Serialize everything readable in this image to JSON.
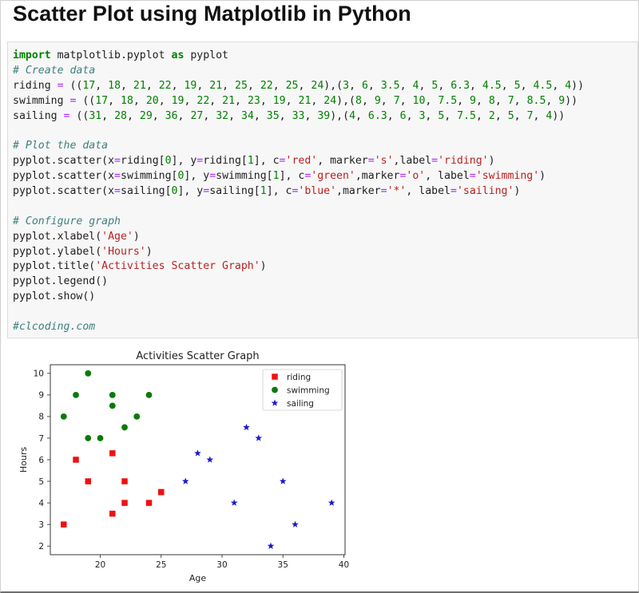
{
  "page": {
    "title": "Scatter Plot using Matplotlib in Python"
  },
  "code": {
    "lines": [
      [
        {
          "t": "import",
          "c": "kw"
        },
        {
          "t": " matplotlib.pyplot "
        },
        {
          "t": "as",
          "c": "kw"
        },
        {
          "t": " pyplot"
        }
      ],
      [
        {
          "t": "# Create data",
          "c": "cm"
        }
      ],
      [
        {
          "t": "riding "
        },
        {
          "t": "=",
          "c": "op"
        },
        {
          "t": " (("
        },
        {
          "t": "17",
          "c": "num"
        },
        {
          "t": ", "
        },
        {
          "t": "18",
          "c": "num"
        },
        {
          "t": ", "
        },
        {
          "t": "21",
          "c": "num"
        },
        {
          "t": ", "
        },
        {
          "t": "22",
          "c": "num"
        },
        {
          "t": ", "
        },
        {
          "t": "19",
          "c": "num"
        },
        {
          "t": ", "
        },
        {
          "t": "21",
          "c": "num"
        },
        {
          "t": ", "
        },
        {
          "t": "25",
          "c": "num"
        },
        {
          "t": ", "
        },
        {
          "t": "22",
          "c": "num"
        },
        {
          "t": ", "
        },
        {
          "t": "25",
          "c": "num"
        },
        {
          "t": ", "
        },
        {
          "t": "24",
          "c": "num"
        },
        {
          "t": "),("
        },
        {
          "t": "3",
          "c": "num"
        },
        {
          "t": ", "
        },
        {
          "t": "6",
          "c": "num"
        },
        {
          "t": ", "
        },
        {
          "t": "3.5",
          "c": "num"
        },
        {
          "t": ", "
        },
        {
          "t": "4",
          "c": "num"
        },
        {
          "t": ", "
        },
        {
          "t": "5",
          "c": "num"
        },
        {
          "t": ", "
        },
        {
          "t": "6.3",
          "c": "num"
        },
        {
          "t": ", "
        },
        {
          "t": "4.5",
          "c": "num"
        },
        {
          "t": ", "
        },
        {
          "t": "5",
          "c": "num"
        },
        {
          "t": ", "
        },
        {
          "t": "4.5",
          "c": "num"
        },
        {
          "t": ", "
        },
        {
          "t": "4",
          "c": "num"
        },
        {
          "t": "))"
        }
      ],
      [
        {
          "t": "swimming "
        },
        {
          "t": "=",
          "c": "op"
        },
        {
          "t": " (("
        },
        {
          "t": "17",
          "c": "num"
        },
        {
          "t": ", "
        },
        {
          "t": "18",
          "c": "num"
        },
        {
          "t": ", "
        },
        {
          "t": "20",
          "c": "num"
        },
        {
          "t": ", "
        },
        {
          "t": "19",
          "c": "num"
        },
        {
          "t": ", "
        },
        {
          "t": "22",
          "c": "num"
        },
        {
          "t": ", "
        },
        {
          "t": "21",
          "c": "num"
        },
        {
          "t": ", "
        },
        {
          "t": "23",
          "c": "num"
        },
        {
          "t": ", "
        },
        {
          "t": "19",
          "c": "num"
        },
        {
          "t": ", "
        },
        {
          "t": "21",
          "c": "num"
        },
        {
          "t": ", "
        },
        {
          "t": "24",
          "c": "num"
        },
        {
          "t": "),("
        },
        {
          "t": "8",
          "c": "num"
        },
        {
          "t": ", "
        },
        {
          "t": "9",
          "c": "num"
        },
        {
          "t": ", "
        },
        {
          "t": "7",
          "c": "num"
        },
        {
          "t": ", "
        },
        {
          "t": "10",
          "c": "num"
        },
        {
          "t": ", "
        },
        {
          "t": "7.5",
          "c": "num"
        },
        {
          "t": ", "
        },
        {
          "t": "9",
          "c": "num"
        },
        {
          "t": ", "
        },
        {
          "t": "8",
          "c": "num"
        },
        {
          "t": ", "
        },
        {
          "t": "7",
          "c": "num"
        },
        {
          "t": ", "
        },
        {
          "t": "8.5",
          "c": "num"
        },
        {
          "t": ", "
        },
        {
          "t": "9",
          "c": "num"
        },
        {
          "t": "))"
        }
      ],
      [
        {
          "t": "sailing "
        },
        {
          "t": "=",
          "c": "op"
        },
        {
          "t": " (("
        },
        {
          "t": "31",
          "c": "num"
        },
        {
          "t": ", "
        },
        {
          "t": "28",
          "c": "num"
        },
        {
          "t": ", "
        },
        {
          "t": "29",
          "c": "num"
        },
        {
          "t": ", "
        },
        {
          "t": "36",
          "c": "num"
        },
        {
          "t": ", "
        },
        {
          "t": "27",
          "c": "num"
        },
        {
          "t": ", "
        },
        {
          "t": "32",
          "c": "num"
        },
        {
          "t": ", "
        },
        {
          "t": "34",
          "c": "num"
        },
        {
          "t": ", "
        },
        {
          "t": "35",
          "c": "num"
        },
        {
          "t": ", "
        },
        {
          "t": "33",
          "c": "num"
        },
        {
          "t": ", "
        },
        {
          "t": "39",
          "c": "num"
        },
        {
          "t": "),("
        },
        {
          "t": "4",
          "c": "num"
        },
        {
          "t": ", "
        },
        {
          "t": "6.3",
          "c": "num"
        },
        {
          "t": ", "
        },
        {
          "t": "6",
          "c": "num"
        },
        {
          "t": ", "
        },
        {
          "t": "3",
          "c": "num"
        },
        {
          "t": ", "
        },
        {
          "t": "5",
          "c": "num"
        },
        {
          "t": ", "
        },
        {
          "t": "7.5",
          "c": "num"
        },
        {
          "t": ", "
        },
        {
          "t": "2",
          "c": "num"
        },
        {
          "t": ", "
        },
        {
          "t": "5",
          "c": "num"
        },
        {
          "t": ", "
        },
        {
          "t": "7",
          "c": "num"
        },
        {
          "t": ", "
        },
        {
          "t": "4",
          "c": "num"
        },
        {
          "t": "))"
        }
      ],
      [],
      [
        {
          "t": "# Plot the data",
          "c": "cm"
        }
      ],
      [
        {
          "t": "pyplot.scatter(x"
        },
        {
          "t": "=",
          "c": "op"
        },
        {
          "t": "riding["
        },
        {
          "t": "0",
          "c": "num"
        },
        {
          "t": "], y"
        },
        {
          "t": "=",
          "c": "op"
        },
        {
          "t": "riding["
        },
        {
          "t": "1",
          "c": "num"
        },
        {
          "t": "], c"
        },
        {
          "t": "=",
          "c": "op"
        },
        {
          "t": "'red'",
          "c": "str"
        },
        {
          "t": ", marker"
        },
        {
          "t": "=",
          "c": "op"
        },
        {
          "t": "'s'",
          "c": "str"
        },
        {
          "t": ",label"
        },
        {
          "t": "=",
          "c": "op"
        },
        {
          "t": "'riding'",
          "c": "str"
        },
        {
          "t": ")"
        }
      ],
      [
        {
          "t": "pyplot.scatter(x"
        },
        {
          "t": "=",
          "c": "op"
        },
        {
          "t": "swimming["
        },
        {
          "t": "0",
          "c": "num"
        },
        {
          "t": "], y"
        },
        {
          "t": "=",
          "c": "op"
        },
        {
          "t": "swimming["
        },
        {
          "t": "1",
          "c": "num"
        },
        {
          "t": "], c"
        },
        {
          "t": "=",
          "c": "op"
        },
        {
          "t": "'green'",
          "c": "str"
        },
        {
          "t": ",marker"
        },
        {
          "t": "=",
          "c": "op"
        },
        {
          "t": "'o'",
          "c": "str"
        },
        {
          "t": ", label"
        },
        {
          "t": "=",
          "c": "op"
        },
        {
          "t": "'swimming'",
          "c": "str"
        },
        {
          "t": ")"
        }
      ],
      [
        {
          "t": "pyplot.scatter(x"
        },
        {
          "t": "=",
          "c": "op"
        },
        {
          "t": "sailing["
        },
        {
          "t": "0",
          "c": "num"
        },
        {
          "t": "], y"
        },
        {
          "t": "=",
          "c": "op"
        },
        {
          "t": "sailing["
        },
        {
          "t": "1",
          "c": "num"
        },
        {
          "t": "], c"
        },
        {
          "t": "=",
          "c": "op"
        },
        {
          "t": "'blue'",
          "c": "str"
        },
        {
          "t": ",marker"
        },
        {
          "t": "=",
          "c": "op"
        },
        {
          "t": "'*'",
          "c": "str"
        },
        {
          "t": ", label"
        },
        {
          "t": "=",
          "c": "op"
        },
        {
          "t": "'sailing'",
          "c": "str"
        },
        {
          "t": ")"
        }
      ],
      [],
      [
        {
          "t": "# Configure graph",
          "c": "cm"
        }
      ],
      [
        {
          "t": "pyplot.xlabel("
        },
        {
          "t": "'Age'",
          "c": "str"
        },
        {
          "t": ")"
        }
      ],
      [
        {
          "t": "pyplot.ylabel("
        },
        {
          "t": "'Hours'",
          "c": "str"
        },
        {
          "t": ")"
        }
      ],
      [
        {
          "t": "pyplot.title("
        },
        {
          "t": "'Activities Scatter Graph'",
          "c": "str"
        },
        {
          "t": ")"
        }
      ],
      [
        {
          "t": "pyplot.legend()"
        }
      ],
      [
        {
          "t": "pyplot.show()"
        }
      ],
      [],
      [
        {
          "t": "#clcoding.com",
          "c": "cm"
        }
      ]
    ]
  },
  "chart_data": {
    "type": "scatter",
    "title": "Activities Scatter Graph",
    "xlabel": "Age",
    "ylabel": "Hours",
    "xlim": [
      15.9,
      40.1
    ],
    "ylim": [
      1.6,
      10.4
    ],
    "xticks": [
      20,
      25,
      30,
      35,
      40
    ],
    "yticks": [
      2,
      3,
      4,
      5,
      6,
      7,
      8,
      9,
      10
    ],
    "legend_position": "top-right",
    "grid": false,
    "series": [
      {
        "name": "riding",
        "marker": "square",
        "color": "#ee1111",
        "x": [
          17,
          18,
          21,
          22,
          19,
          21,
          25,
          22,
          25,
          24
        ],
        "y": [
          3,
          6,
          3.5,
          4,
          5,
          6.3,
          4.5,
          5,
          4.5,
          4
        ]
      },
      {
        "name": "swimming",
        "marker": "circle",
        "color": "#0a7a0a",
        "x": [
          17,
          18,
          20,
          19,
          22,
          21,
          23,
          19,
          21,
          24
        ],
        "y": [
          8,
          9,
          7,
          10,
          7.5,
          9,
          8,
          7,
          8.5,
          9
        ]
      },
      {
        "name": "sailing",
        "marker": "star",
        "color": "#1a1acc",
        "x": [
          31,
          28,
          29,
          36,
          27,
          32,
          34,
          35,
          33,
          39
        ],
        "y": [
          4,
          6.3,
          6,
          3,
          5,
          7.5,
          2,
          5,
          7,
          4
        ]
      }
    ]
  }
}
